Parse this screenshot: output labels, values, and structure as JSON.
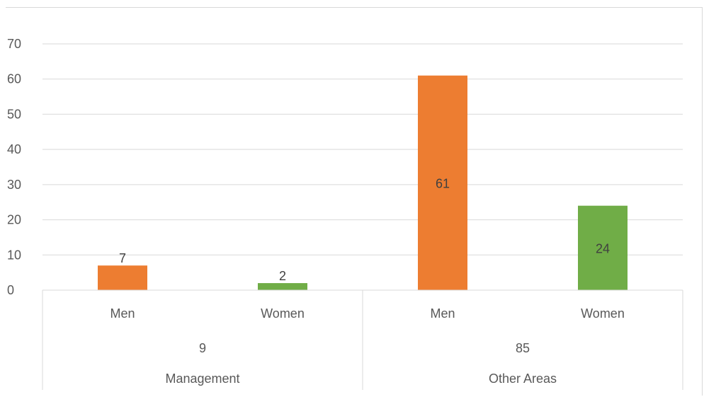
{
  "chart_data": {
    "type": "bar",
    "ylim": [
      0,
      70
    ],
    "yticks": [
      0,
      10,
      20,
      30,
      40,
      50,
      60,
      70
    ],
    "grid": true,
    "groups": [
      {
        "name": "Management",
        "total": "9",
        "bars": [
          {
            "label": "Men",
            "value": 7,
            "color": "#ed7d31"
          },
          {
            "label": "Women",
            "value": 2,
            "color": "#70ad47"
          }
        ]
      },
      {
        "name": "Other Areas",
        "total": "85",
        "bars": [
          {
            "label": "Men",
            "value": 61,
            "color": "#ed7d31"
          },
          {
            "label": "Women",
            "value": 24,
            "color": "#70ad47"
          }
        ]
      }
    ]
  }
}
